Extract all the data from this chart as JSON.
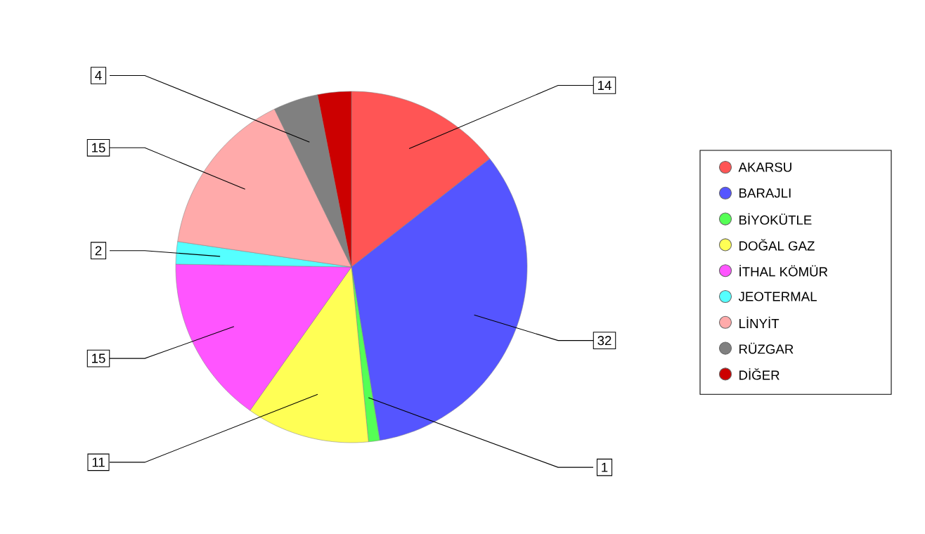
{
  "chart_data": {
    "type": "pie",
    "categories": [
      "AKARSU",
      "BARAJLI",
      "BİYOKÜTLE",
      "DOĞAL GAZ",
      "İTHAL KÖMÜR",
      "JEOTERMAL",
      "LİNYİT",
      "RÜZGAR",
      "DİĞER"
    ],
    "values": [
      14,
      32,
      1,
      11,
      15,
      2,
      15,
      4,
      3
    ],
    "value_labels": [
      "14",
      "32",
      "1",
      "11",
      "15",
      "2",
      "15",
      "4",
      null
    ],
    "colors": [
      "#ff5555",
      "#5555ff",
      "#55ff55",
      "#ffff55",
      "#ff55ff",
      "#55ffff",
      "#ffaaaa",
      "#808080",
      "#cc0000"
    ],
    "legend": "right"
  }
}
